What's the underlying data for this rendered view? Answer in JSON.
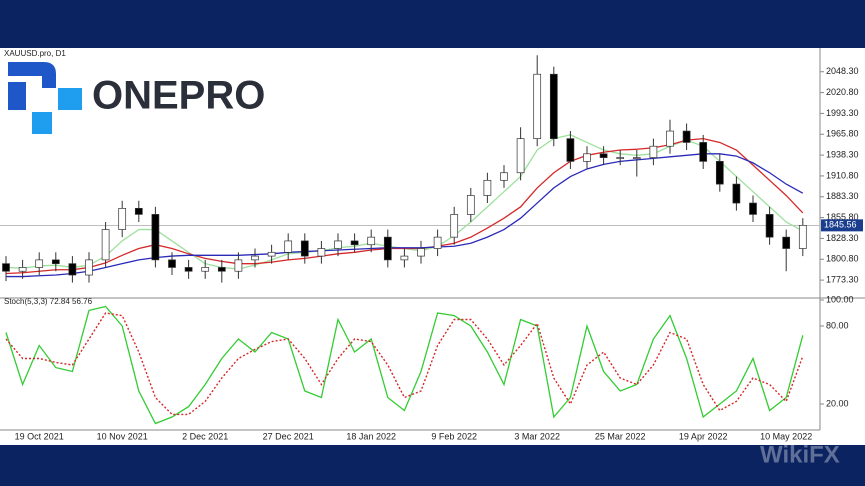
{
  "logo": "ONEPRO",
  "watermark": "WikiFX",
  "chart_data": [
    {
      "type": "candlestick",
      "title": "XAUUSD.pro, D1",
      "up_color": "#ffffff",
      "down_color": "#000000",
      "open": [
        1795,
        1785,
        1790,
        1800,
        1795,
        1780,
        1800,
        1840,
        1868,
        1860,
        1800,
        1790,
        1785,
        1790,
        1785,
        1800,
        1805,
        1810,
        1825,
        1805,
        1815,
        1825,
        1820,
        1830,
        1800,
        1805,
        1815,
        1830,
        1860,
        1885,
        1905,
        1915,
        1960,
        2045,
        1960,
        1930,
        1940,
        1935,
        1935,
        1935,
        1950,
        1970,
        1955,
        1930,
        1900,
        1875,
        1860,
        1830,
        1815
      ],
      "high": [
        1805,
        1800,
        1810,
        1810,
        1805,
        1810,
        1850,
        1878,
        1878,
        1870,
        1810,
        1800,
        1800,
        1800,
        1810,
        1815,
        1820,
        1835,
        1835,
        1825,
        1835,
        1835,
        1840,
        1840,
        1815,
        1825,
        1840,
        1870,
        1895,
        1915,
        1925,
        1975,
        2070,
        2055,
        1970,
        1950,
        1950,
        1945,
        1945,
        1960,
        1985,
        1980,
        1965,
        1940,
        1910,
        1885,
        1870,
        1840,
        1855
      ],
      "low": [
        1772,
        1775,
        1780,
        1785,
        1770,
        1770,
        1790,
        1830,
        1850,
        1790,
        1780,
        1775,
        1775,
        1770,
        1775,
        1790,
        1795,
        1800,
        1795,
        1795,
        1805,
        1810,
        1810,
        1790,
        1790,
        1795,
        1805,
        1820,
        1850,
        1875,
        1895,
        1905,
        1950,
        1950,
        1920,
        1920,
        1925,
        1925,
        1910,
        1925,
        1940,
        1945,
        1920,
        1890,
        1865,
        1850,
        1820,
        1785,
        1805
      ],
      "close": [
        1785,
        1790,
        1800,
        1795,
        1780,
        1800,
        1840,
        1868,
        1860,
        1800,
        1790,
        1785,
        1790,
        1785,
        1800,
        1805,
        1810,
        1825,
        1805,
        1815,
        1825,
        1820,
        1830,
        1800,
        1805,
        1815,
        1830,
        1860,
        1885,
        1905,
        1915,
        1960,
        2045,
        1960,
        1930,
        1940,
        1935,
        1935,
        1935,
        1950,
        1970,
        1955,
        1930,
        1900,
        1875,
        1860,
        1830,
        1815,
        1845.56
      ],
      "series": [
        {
          "color": "#9ee09e",
          "values": [
            1790,
            1789,
            1792,
            1793,
            1790,
            1793,
            1805,
            1825,
            1840,
            1840,
            1825,
            1810,
            1795,
            1790,
            1788,
            1793,
            1800,
            1808,
            1810,
            1812,
            1816,
            1818,
            1822,
            1818,
            1815,
            1812,
            1818,
            1832,
            1850,
            1870,
            1890,
            1910,
            1945,
            1960,
            1965,
            1955,
            1945,
            1940,
            1938,
            1940,
            1950,
            1958,
            1950,
            1930,
            1910,
            1890,
            1870,
            1850,
            1838
          ]
        },
        {
          "color": "#d62828",
          "values": [
            1782,
            1783,
            1785,
            1787,
            1787,
            1790,
            1796,
            1806,
            1815,
            1820,
            1815,
            1808,
            1802,
            1798,
            1795,
            1795,
            1797,
            1800,
            1802,
            1805,
            1808,
            1810,
            1813,
            1815,
            1815,
            1815,
            1818,
            1822,
            1830,
            1842,
            1855,
            1870,
            1895,
            1915,
            1930,
            1938,
            1942,
            1945,
            1946,
            1948,
            1952,
            1958,
            1960,
            1955,
            1945,
            1925,
            1905,
            1885,
            1862
          ]
        },
        {
          "color": "#2a2ab8",
          "values": [
            1778,
            1778,
            1779,
            1780,
            1782,
            1785,
            1790,
            1795,
            1800,
            1803,
            1805,
            1806,
            1806,
            1806,
            1806,
            1807,
            1808,
            1810,
            1811,
            1812,
            1813,
            1814,
            1815,
            1816,
            1816,
            1816,
            1817,
            1818,
            1822,
            1830,
            1840,
            1855,
            1875,
            1895,
            1910,
            1920,
            1926,
            1930,
            1932,
            1934,
            1936,
            1938,
            1940,
            1940,
            1937,
            1928,
            1915,
            1900,
            1888
          ]
        }
      ],
      "ylim": [
        1751,
        2077
      ],
      "yticks": [
        {
          "value": 2048.3,
          "label": "2048.30"
        },
        {
          "value": 2020.8,
          "label": "2020.80"
        },
        {
          "value": 1993.3,
          "label": "1993.30"
        },
        {
          "value": 1965.8,
          "label": "1965.80"
        },
        {
          "value": 1938.3,
          "label": "1938.30"
        },
        {
          "value": 1910.8,
          "label": "1910.80"
        },
        {
          "value": 1883.3,
          "label": "1883.30"
        },
        {
          "value": 1855.8,
          "label": "1855.80"
        },
        {
          "value": 1828.3,
          "label": "1828.30"
        },
        {
          "value": 1800.8,
          "label": "1800.80"
        },
        {
          "value": 1773.3,
          "label": "1773.30"
        }
      ]
    },
    {
      "type": "line",
      "title": "Stoch(5,3,3) 72.84 56.76",
      "categories": [
        null,
        null,
        "19 Oct 2021",
        null,
        null,
        null,
        null,
        "10 Nov 2021",
        null,
        null,
        null,
        null,
        "2 Dec 2021",
        null,
        null,
        null,
        null,
        "27 Dec 2021",
        null,
        null,
        null,
        null,
        "18 Jan 2022",
        null,
        null,
        null,
        null,
        "9 Feb 2022",
        null,
        null,
        null,
        null,
        "3 Mar 2022",
        null,
        null,
        null,
        null,
        "25 Mar 2022",
        null,
        null,
        null,
        null,
        "19 Apr 2022",
        null,
        null,
        null,
        null,
        "10 May 2022",
        null
      ],
      "series": [
        {
          "color": "#33cc33",
          "style": "solid",
          "values": [
            75,
            35,
            65,
            48,
            45,
            92,
            95,
            80,
            30,
            5,
            10,
            18,
            35,
            55,
            70,
            60,
            75,
            70,
            30,
            25,
            85,
            60,
            70,
            25,
            15,
            45,
            90,
            88,
            80,
            60,
            35,
            85,
            80,
            10,
            25,
            80,
            45,
            30,
            35,
            70,
            88,
            55,
            10,
            20,
            30,
            55,
            15,
            25,
            72.84
          ]
        },
        {
          "color": "#d62828",
          "style": "dotted",
          "values": [
            70,
            55,
            55,
            52,
            50,
            70,
            90,
            88,
            60,
            25,
            12,
            12,
            22,
            40,
            55,
            62,
            68,
            70,
            55,
            35,
            55,
            70,
            68,
            50,
            25,
            30,
            65,
            85,
            85,
            70,
            50,
            65,
            82,
            40,
            20,
            50,
            60,
            40,
            35,
            50,
            75,
            70,
            35,
            15,
            22,
            40,
            35,
            22,
            56.76
          ]
        }
      ],
      "ylim": [
        0,
        100
      ],
      "yticks": [
        {
          "value": 100,
          "label": "100.00"
        },
        {
          "value": 80,
          "label": "80.00"
        },
        {
          "value": 20,
          "label": "20.00"
        }
      ]
    }
  ]
}
